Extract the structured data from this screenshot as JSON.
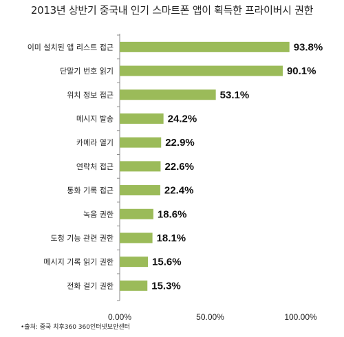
{
  "chart_data": {
    "type": "bar",
    "orientation": "horizontal",
    "title": "2013년 상반기 중국내 인기 스마트폰 앱이 획득한 프라이버시 권한",
    "categories": [
      "이미 설치된 앱 리스트 접근",
      "단말기 번호 읽기",
      "위치 정보 접근",
      "메시지 발송",
      "카메라 열기",
      "연락처 접근",
      "통화 기록 접근",
      "녹음 권한",
      "도청 기능 관련 권한",
      "메시지 기록 읽기 권한",
      "전화 걸기 권한"
    ],
    "values": [
      93.8,
      90.1,
      53.1,
      24.2,
      22.9,
      22.6,
      22.4,
      18.6,
      18.1,
      15.6,
      15.3
    ],
    "value_labels": [
      "93.8%",
      "90.1%",
      "53.1%",
      "24.2%",
      "22.9%",
      "22.6%",
      "22.4%",
      "18.6%",
      "18.1%",
      "15.6%",
      "15.3%"
    ],
    "highlight_index": 0,
    "xlim": [
      0,
      100
    ],
    "x_ticks": [
      0,
      50,
      100
    ],
    "x_tick_labels": [
      "0.00%",
      "50.00%",
      "100.00%"
    ],
    "grid": false,
    "bar_color": "#9bbb59",
    "highlight_label_color": "#e3241b",
    "value_label_color": "#111111",
    "source": "•출처: 중국 치후360 360인터넷보안센터"
  }
}
